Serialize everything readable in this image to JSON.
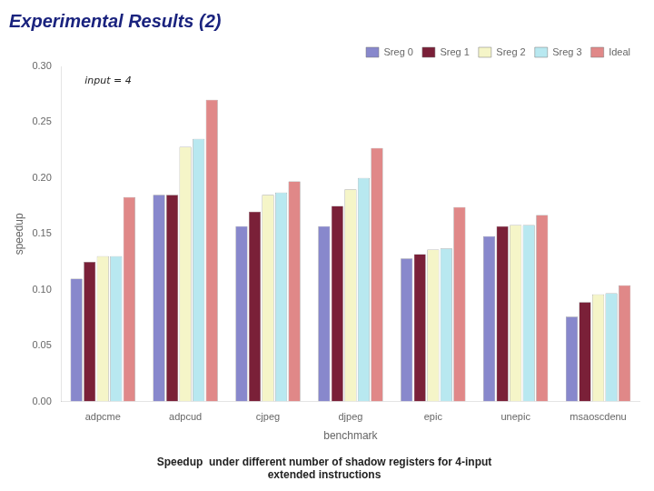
{
  "chart_data": {
    "type": "bar",
    "title": "Experimental Results (2)",
    "subtitle": "Speedup  under different number of shadow registers for 4-input\nextended instructions",
    "annotation": "input = 4",
    "x_label": "benchmark",
    "y_label": "speedup",
    "categories": [
      "adpcme",
      "adpcud",
      "cjpeg",
      "djpeg",
      "epic",
      "unepic",
      "msaoscdenu"
    ],
    "series": [
      {
        "name": "Sreg 0",
        "color": "#8888cc",
        "values": [
          0.11,
          0.185,
          0.157,
          0.157,
          0.128,
          0.148,
          0.076
        ]
      },
      {
        "name": "Sreg 1",
        "color": "#7a2038",
        "values": [
          0.125,
          0.185,
          0.17,
          0.175,
          0.132,
          0.157,
          0.089
        ]
      },
      {
        "name": "Sreg 2",
        "color": "#f5f5c8",
        "values": [
          0.13,
          0.228,
          0.185,
          0.19,
          0.136,
          0.158,
          0.096
        ]
      },
      {
        "name": "Sreg 3",
        "color": "#b8e8f0",
        "values": [
          0.13,
          0.235,
          0.187,
          0.2,
          0.137,
          0.158,
          0.097
        ]
      },
      {
        "name": "Ideal",
        "color": "#e08888",
        "values": [
          0.183,
          0.27,
          0.197,
          0.227,
          0.174,
          0.167,
          0.104
        ]
      }
    ],
    "ylim": [
      0.0,
      0.3
    ],
    "yticks": [
      {
        "value": 0.0,
        "label": "0.00"
      },
      {
        "value": 0.05,
        "label": "0.05"
      },
      {
        "value": 0.1,
        "label": "0.10"
      },
      {
        "value": 0.15,
        "label": "0.15"
      },
      {
        "value": 0.2,
        "label": "0.20"
      },
      {
        "value": 0.25,
        "label": "0.25"
      },
      {
        "value": 0.3,
        "label": "0.30"
      }
    ],
    "grid": false,
    "legend": "upper right"
  }
}
